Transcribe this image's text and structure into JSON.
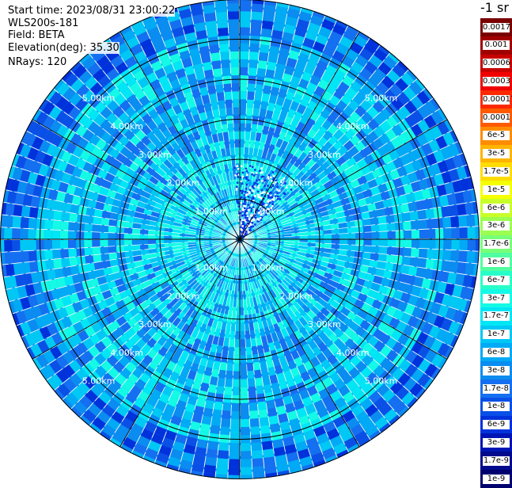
{
  "info": {
    "start_time": "Start time: 2023/08/31 23:00:22",
    "instrument": "WLS200s-181",
    "field": "Field: BETA",
    "elevation": "Elevation(deg): 35.30",
    "nrays": "NRays: 120"
  },
  "colorbar": {
    "title": "-1 sr",
    "entries": [
      {
        "label": "0.0017",
        "color": "#7a0000"
      },
      {
        "label": "0.001",
        "color": "#a00000"
      },
      {
        "label": "0.0006",
        "color": "#c80000"
      },
      {
        "label": "0.0003",
        "color": "#f00000"
      },
      {
        "label": "0.00017",
        "color": "#ff2800"
      },
      {
        "label": "0.0001",
        "color": "#ff5a00"
      },
      {
        "label": "6e-5",
        "color": "#ff8c00"
      },
      {
        "label": "3e-5",
        "color": "#ffb400"
      },
      {
        "label": "1.7e-5",
        "color": "#ffdc00"
      },
      {
        "label": "1e-5",
        "color": "#f5ff00"
      },
      {
        "label": "6e-6",
        "color": "#c8ff28"
      },
      {
        "label": "3e-6",
        "color": "#9bff50"
      },
      {
        "label": "1.7e-6",
        "color": "#78ff78"
      },
      {
        "label": "1e-6",
        "color": "#50ffa0"
      },
      {
        "label": "6e-7",
        "color": "#28ffc8"
      },
      {
        "label": "3e-7",
        "color": "#14fae6"
      },
      {
        "label": "1.7e-7",
        "color": "#00e6f5"
      },
      {
        "label": "1e-7",
        "color": "#00c8f5"
      },
      {
        "label": "6e-8",
        "color": "#00aaf5"
      },
      {
        "label": "3e-8",
        "color": "#0a8cf0"
      },
      {
        "label": "1.7e-8",
        "color": "#1470f0"
      },
      {
        "label": "1e-8",
        "color": "#0a50e6"
      },
      {
        "label": "6e-9",
        "color": "#0032dc"
      },
      {
        "label": "3e-9",
        "color": "#0014b4"
      },
      {
        "label": "1.7e-9",
        "color": "#000a8c"
      },
      {
        "label": "1e-9",
        "color": "#00006e"
      }
    ]
  },
  "chart_data": {
    "type": "heatmap",
    "projection": "polar-ppi",
    "field": "BETA",
    "nrays": 120,
    "rmax_km": 6.0,
    "range_rings_km": [
      1.0,
      2.0,
      3.0,
      4.0,
      5.0
    ],
    "ring_labels": [
      "1.00km",
      "2.00km",
      "3.00km",
      "4.00km",
      "5.00km"
    ],
    "spoke_angles_deg": [
      0,
      30,
      60,
      90,
      120,
      150,
      180,
      210,
      240,
      270,
      300,
      330
    ],
    "colors": {
      "background_field": "#1e8cf0",
      "ring": "#000000",
      "gap": "#ffffff"
    }
  }
}
